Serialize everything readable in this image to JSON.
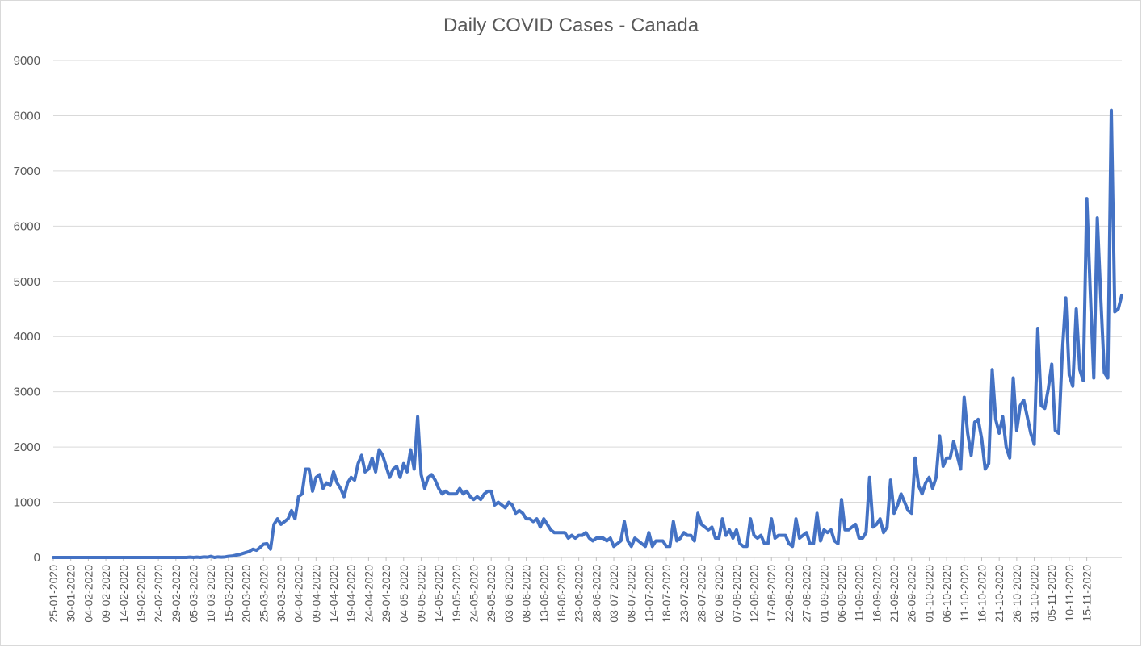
{
  "chart_data": {
    "type": "line",
    "title": "Daily COVID Cases - Canada",
    "xlabel": "",
    "ylabel": "",
    "ylim": [
      0,
      9000
    ],
    "yticks": [
      0,
      1000,
      2000,
      3000,
      4000,
      5000,
      6000,
      7000,
      8000,
      9000
    ],
    "grid": true,
    "line_color": "#4472C4",
    "start_date": "2020-01-25",
    "tick_every_days": 5,
    "x_tick_labels": [
      "25-01-2020",
      "30-01-2020",
      "04-02-2020",
      "09-02-2020",
      "14-02-2020",
      "19-02-2020",
      "24-02-2020",
      "29-02-2020",
      "05-03-2020",
      "10-03-2020",
      "15-03-2020",
      "20-03-2020",
      "25-03-2020",
      "30-03-2020",
      "04-04-2020",
      "09-04-2020",
      "14-04-2020",
      "19-04-2020",
      "24-04-2020",
      "29-04-2020",
      "04-05-2020",
      "09-05-2020",
      "14-05-2020",
      "19-05-2020",
      "24-05-2020",
      "29-05-2020",
      "03-06-2020",
      "08-06-2020",
      "13-06-2020",
      "18-06-2020",
      "23-06-2020",
      "28-06-2020",
      "03-07-2020",
      "08-07-2020",
      "13-07-2020",
      "18-07-2020",
      "23-07-2020",
      "28-07-2020",
      "02-08-2020",
      "07-08-2020",
      "12-08-2020",
      "17-08-2020",
      "22-08-2020",
      "27-08-2020",
      "01-09-2020",
      "06-09-2020",
      "11-09-2020",
      "16-09-2020",
      "21-09-2020",
      "26-09-2020",
      "01-10-2020",
      "06-10-2020",
      "11-10-2020",
      "16-10-2020",
      "21-10-2020",
      "26-10-2020",
      "31-10-2020",
      "05-11-2020",
      "10-11-2020",
      "15-11-2020"
    ],
    "series": [
      {
        "name": "",
        "values": [
          0,
          0,
          0,
          0,
          0,
          0,
          0,
          0,
          0,
          0,
          0,
          0,
          0,
          0,
          0,
          0,
          0,
          0,
          0,
          0,
          0,
          0,
          0,
          0,
          0,
          0,
          0,
          0,
          0,
          0,
          0,
          0,
          0,
          0,
          0,
          0,
          0,
          0,
          0,
          5,
          0,
          5,
          0,
          10,
          5,
          20,
          0,
          10,
          5,
          10,
          20,
          25,
          40,
          50,
          70,
          90,
          110,
          150,
          130,
          180,
          240,
          250,
          150,
          600,
          700,
          600,
          650,
          700,
          850,
          700,
          1100,
          1150,
          1600,
          1600,
          1200,
          1450,
          1500,
          1250,
          1350,
          1300,
          1550,
          1350,
          1250,
          1100,
          1350,
          1450,
          1400,
          1700,
          1850,
          1550,
          1600,
          1800,
          1550,
          1950,
          1850,
          1650,
          1450,
          1600,
          1650,
          1450,
          1700,
          1550,
          1950,
          1600,
          2550,
          1500,
          1250,
          1450,
          1500,
          1400,
          1250,
          1150,
          1200,
          1150,
          1150,
          1150,
          1250,
          1150,
          1200,
          1100,
          1050,
          1100,
          1050,
          1150,
          1200,
          1200,
          950,
          1000,
          950,
          900,
          1000,
          950,
          800,
          850,
          800,
          700,
          700,
          650,
          700,
          550,
          700,
          600,
          500,
          450,
          450,
          450,
          450,
          350,
          400,
          350,
          400,
          400,
          450,
          350,
          300,
          350,
          350,
          350,
          300,
          350,
          200,
          250,
          300,
          650,
          300,
          200,
          350,
          300,
          250,
          200,
          450,
          200,
          300,
          300,
          300,
          200,
          200,
          650,
          300,
          350,
          450,
          400,
          400,
          300,
          800,
          600,
          550,
          500,
          550,
          350,
          350,
          700,
          400,
          500,
          350,
          500,
          250,
          200,
          200,
          700,
          400,
          350,
          400,
          250,
          250,
          700,
          350,
          400,
          400,
          400,
          250,
          200,
          700,
          350,
          400,
          450,
          250,
          250,
          800,
          300,
          500,
          450,
          500,
          300,
          250,
          1050,
          500,
          500,
          550,
          600,
          350,
          350,
          450,
          1450,
          550,
          600,
          700,
          450,
          550,
          1400,
          800,
          950,
          1150,
          1000,
          850,
          800,
          1800,
          1300,
          1150,
          1350,
          1450,
          1250,
          1450,
          2200,
          1650,
          1800,
          1800,
          2100,
          1850,
          1600,
          2900,
          2250,
          1850,
          2450,
          2500,
          2150,
          1600,
          1700,
          3400,
          2500,
          2250,
          2550,
          2000,
          1800,
          3250,
          2300,
          2750,
          2850,
          2550,
          2250,
          2050,
          4150,
          2750,
          2700,
          3050,
          3500,
          2300,
          2250,
          3700,
          4700,
          3300,
          3100,
          4500,
          3400,
          3200,
          6500,
          4800,
          3250,
          6150,
          4700,
          3350,
          3250,
          8100,
          4450,
          4500,
          4750
        ]
      }
    ]
  }
}
